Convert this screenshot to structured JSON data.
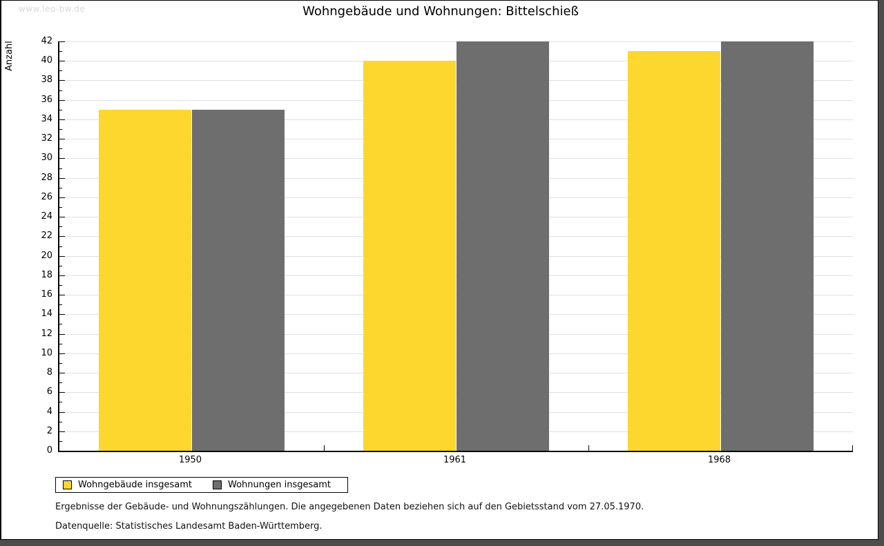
{
  "watermark": "www.leo-bw.de",
  "title": "Wohngebäude und Wohnungen: Bittelschieß",
  "chart_data": {
    "type": "bar",
    "title": "Wohngebäude und Wohnungen: Bittelschieß",
    "categories": [
      "1950",
      "1961",
      "1968"
    ],
    "series": [
      {
        "name": "Wohngebäude insgesamt",
        "color": "#FDD72E",
        "values": [
          35,
          40,
          41
        ]
      },
      {
        "name": "Wohnungen insgesamt",
        "color": "#6E6E6E",
        "values": [
          35,
          42,
          42
        ]
      }
    ],
    "xlabel": "",
    "ylabel": "Anzahl",
    "ylim": [
      0,
      42
    ],
    "ytick_step": 2,
    "minor_tick_step": 1,
    "grid": true,
    "gridline_color": "#E0E0E0",
    "axis_color": "#000000",
    "legend_position": "bottom-left"
  },
  "footnotes": {
    "line1": "Ergebnisse der Gebäude- und Wohnungszählungen. Die angegebenen Daten beziehen sich auf den Gebietsstand vom 27.05.1970.",
    "line2": "Datenquelle: Statistisches Landesamt Baden-Württemberg."
  }
}
